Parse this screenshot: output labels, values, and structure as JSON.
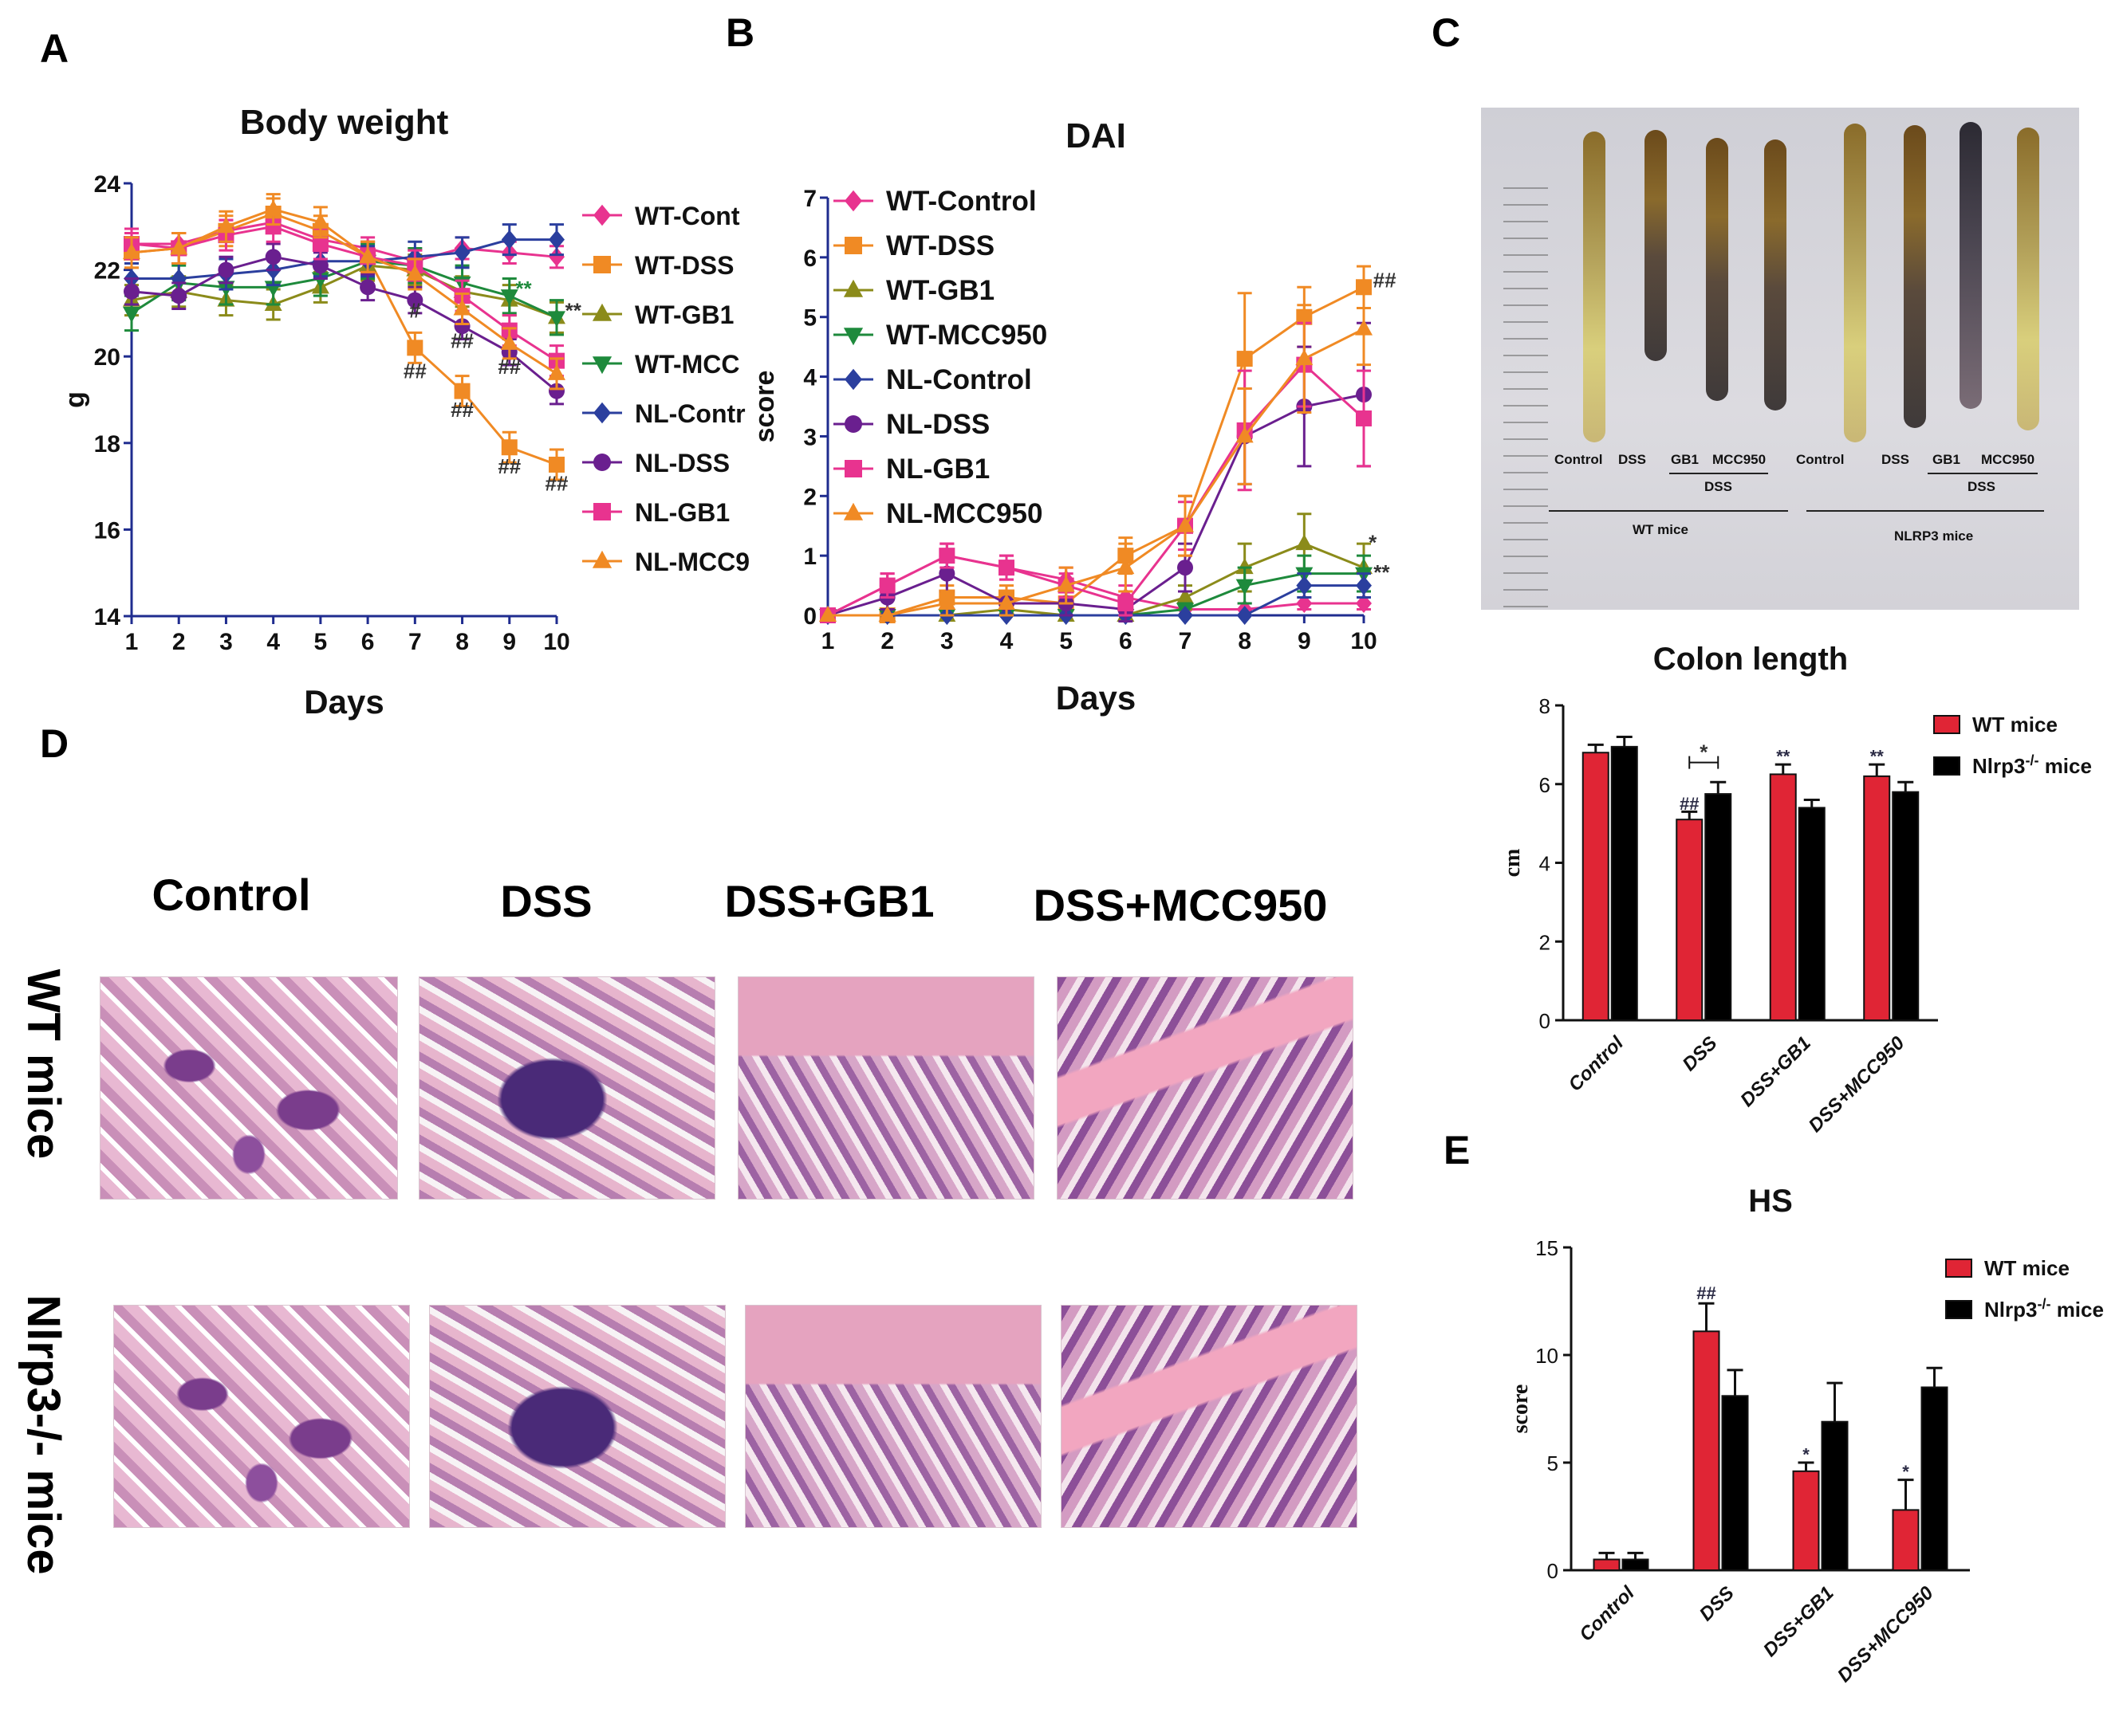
{
  "panels": {
    "A": "A",
    "B": "B",
    "C": "C",
    "D": "D",
    "E": "E"
  },
  "colors": {
    "WT-Control": "#e8338f",
    "WT-DSS": "#f08a24",
    "WT-GB1": "#8b8b1a",
    "WT-MCC950": "#1e8a3c",
    "NL-Control": "#2b3f9e",
    "NL-DSS": "#6a1f8f",
    "NL-GB1": "#e8338f",
    "NL-MCC950": "#f08a24",
    "wt_bar": "#e02535",
    "ko_bar": "#000000"
  },
  "chart_data": [
    {
      "id": "body-weight",
      "type": "line",
      "title": "Body weight",
      "xlabel": "Days",
      "ylabel": "g",
      "x": [
        1,
        2,
        3,
        4,
        5,
        6,
        7,
        8,
        9,
        10
      ],
      "ylim": [
        14,
        24
      ],
      "yticks": [
        14,
        16,
        18,
        20,
        22,
        24
      ],
      "series": [
        {
          "name": "WT-Cont",
          "marker": "diamond",
          "color": "#e8338f",
          "values": [
            22.6,
            22.6,
            22.9,
            23.1,
            22.7,
            22.5,
            22.2,
            22.5,
            22.4,
            22.3
          ],
          "err": 0.25
        },
        {
          "name": "WT-DSS",
          "marker": "square",
          "color": "#f08a24",
          "values": [
            22.4,
            22.5,
            22.9,
            23.3,
            22.9,
            22.3,
            20.2,
            19.2,
            17.9,
            17.5
          ],
          "err": 0.35
        },
        {
          "name": "WT-GB1",
          "marker": "triangle-up",
          "color": "#8b8b1a",
          "values": [
            21.3,
            21.5,
            21.3,
            21.2,
            21.6,
            22.1,
            22.0,
            21.5,
            21.3,
            20.9
          ],
          "err": 0.35
        },
        {
          "name": "WT-MCC",
          "marker": "triangle-down",
          "color": "#1e8a3c",
          "values": [
            21.0,
            21.7,
            21.6,
            21.6,
            21.8,
            22.2,
            22.1,
            21.7,
            21.4,
            20.9
          ],
          "err": 0.4
        },
        {
          "name": "NL-Contr",
          "marker": "diamond",
          "color": "#2b3f9e",
          "values": [
            21.8,
            21.8,
            21.9,
            22.0,
            22.2,
            22.2,
            22.3,
            22.4,
            22.7,
            22.7
          ],
          "err": 0.35
        },
        {
          "name": "NL-DSS",
          "marker": "circle",
          "color": "#6a1f8f",
          "values": [
            21.5,
            21.4,
            22.0,
            22.3,
            22.1,
            21.6,
            21.3,
            20.7,
            20.1,
            19.2
          ],
          "err": 0.3
        },
        {
          "name": "NL-GB1",
          "marker": "square",
          "color": "#e8338f",
          "values": [
            22.6,
            22.5,
            22.8,
            23.0,
            22.6,
            22.3,
            22.1,
            21.4,
            20.6,
            19.9
          ],
          "err": 0.35
        },
        {
          "name": "NL-MCC9",
          "marker": "triangle-up",
          "color": "#f08a24",
          "values": [
            22.4,
            22.5,
            23.0,
            23.4,
            23.1,
            22.3,
            21.9,
            21.1,
            20.3,
            19.6
          ],
          "err": 0.35
        }
      ],
      "annotations": [
        {
          "text": "#",
          "x": 7,
          "y": 20.9,
          "color": "#333"
        },
        {
          "text": "##",
          "x": 7,
          "y": 19.5,
          "color": "#333"
        },
        {
          "text": "##",
          "x": 8,
          "y": 20.2,
          "color": "#333"
        },
        {
          "text": "##",
          "x": 8,
          "y": 18.6,
          "color": "#333"
        },
        {
          "text": "##",
          "x": 9,
          "y": 19.6,
          "color": "#333"
        },
        {
          "text": "##",
          "x": 9,
          "y": 17.3,
          "color": "#333"
        },
        {
          "text": "##",
          "x": 10,
          "y": 16.9,
          "color": "#333"
        },
        {
          "text": "**",
          "x": 9.3,
          "y": 21.4,
          "color": "#1e8a3c"
        },
        {
          "text": "**",
          "x": 10.35,
          "y": 20.9,
          "color": "#333"
        }
      ]
    },
    {
      "id": "dai",
      "type": "line",
      "title": "DAI",
      "xlabel": "Days",
      "ylabel": "score",
      "x": [
        1,
        2,
        3,
        4,
        5,
        6,
        7,
        8,
        9,
        10
      ],
      "ylim": [
        0,
        7
      ],
      "yticks": [
        0,
        1,
        2,
        3,
        4,
        5,
        6,
        7
      ],
      "series": [
        {
          "name": "WT-Control",
          "marker": "diamond",
          "color": "#e8338f",
          "values": [
            0,
            0.5,
            1.0,
            0.8,
            0.6,
            0.3,
            0.1,
            0.1,
            0.2,
            0.2
          ],
          "err": [
            0,
            0.2,
            0.2,
            0.2,
            0.2,
            0.2,
            0.1,
            0.1,
            0.1,
            0.1
          ]
        },
        {
          "name": "WT-DSS",
          "marker": "square",
          "color": "#f08a24",
          "values": [
            0,
            0,
            0.3,
            0.3,
            0.2,
            1.0,
            1.5,
            4.3,
            5.0,
            5.5
          ],
          "err": [
            0,
            0,
            0.2,
            0.2,
            0.2,
            0.3,
            0.5,
            1.1,
            0.5,
            0.35
          ]
        },
        {
          "name": "WT-GB1",
          "marker": "triangle-up",
          "color": "#8b8b1a",
          "values": [
            0,
            0,
            0,
            0.1,
            0,
            0,
            0.3,
            0.8,
            1.2,
            0.8
          ],
          "err": [
            0,
            0,
            0,
            0.1,
            0,
            0,
            0.2,
            0.4,
            0.5,
            0.4
          ]
        },
        {
          "name": "WT-MCC950",
          "marker": "triangle-down",
          "color": "#1e8a3c",
          "values": [
            0,
            0,
            0,
            0,
            0,
            0,
            0.1,
            0.5,
            0.7,
            0.7
          ],
          "err": [
            0,
            0,
            0,
            0,
            0,
            0,
            0.1,
            0.3,
            0.3,
            0.3
          ]
        },
        {
          "name": "NL-Control",
          "marker": "diamond",
          "color": "#2b3f9e",
          "values": [
            0,
            0,
            0,
            0,
            0,
            0,
            0,
            0,
            0.5,
            0.5
          ],
          "err": [
            0,
            0,
            0,
            0,
            0,
            0,
            0,
            0,
            0.2,
            0.2
          ]
        },
        {
          "name": "NL-DSS",
          "marker": "circle",
          "color": "#6a1f8f",
          "values": [
            0,
            0.3,
            0.7,
            0.2,
            0.2,
            0.1,
            0.8,
            3.0,
            3.5,
            3.7
          ],
          "err": [
            0,
            0.2,
            0.3,
            0.2,
            0.2,
            0.2,
            0.4,
            0.8,
            1.0,
            1.2
          ]
        },
        {
          "name": "NL-GB1",
          "marker": "square",
          "color": "#e8338f",
          "values": [
            0,
            0.5,
            1.0,
            0.8,
            0.5,
            0.2,
            1.5,
            3.1,
            4.2,
            3.3
          ],
          "err": [
            0,
            0.2,
            0.2,
            0.2,
            0.2,
            0.2,
            0.4,
            1.0,
            0.7,
            0.8
          ]
        },
        {
          "name": "NL-MCC950",
          "marker": "triangle-up",
          "color": "#f08a24",
          "values": [
            0,
            0,
            0.2,
            0.2,
            0.5,
            0.8,
            1.5,
            3.0,
            4.3,
            4.8
          ],
          "err": [
            0,
            0,
            0.2,
            0.2,
            0.3,
            0.4,
            0.5,
            0.8,
            0.9,
            0.6
          ]
        }
      ],
      "annotations": [
        {
          "text": "##",
          "x": 10.35,
          "y": 5.5,
          "color": "#333"
        },
        {
          "text": "*",
          "x": 10.15,
          "y": 1.1,
          "color": "#333"
        },
        {
          "text": "**",
          "x": 10.3,
          "y": 0.6,
          "color": "#333"
        }
      ]
    },
    {
      "id": "colon-length",
      "type": "bar",
      "title": "Colon length",
      "ylabel": "cm",
      "categories": [
        "Control",
        "DSS",
        "DSS+GB1",
        "DSS+MCC950"
      ],
      "ylim": [
        0,
        8
      ],
      "yticks": [
        0,
        2,
        4,
        6,
        8
      ],
      "legend": [
        "WT mice",
        "Nlrp3",
        "-/-",
        " mice"
      ],
      "series": [
        {
          "name": "WT mice",
          "color": "#e02535",
          "values": [
            6.8,
            5.1,
            6.25,
            6.2
          ],
          "err": [
            0.2,
            0.2,
            0.25,
            0.3
          ]
        },
        {
          "name": "Nlrp3-/- mice",
          "color": "#000000",
          "values": [
            6.95,
            5.75,
            5.4,
            5.8
          ],
          "err": [
            0.25,
            0.3,
            0.2,
            0.25
          ]
        }
      ],
      "annotations": [
        {
          "text": "##",
          "category": 1,
          "series": 0,
          "y": 5.35
        },
        {
          "text": "**",
          "category": 2,
          "series": 0,
          "y": 6.55
        },
        {
          "text": "**",
          "category": 3,
          "series": 0,
          "y": 6.55
        },
        {
          "text": "*",
          "bracket": [
            1,
            0,
            1,
            1
          ],
          "y": 6.55
        }
      ]
    },
    {
      "id": "hs",
      "type": "bar",
      "title": "HS",
      "ylabel": "score",
      "categories": [
        "Control",
        "DSS",
        "DSS+GB1",
        "DSS+MCC950"
      ],
      "ylim": [
        0,
        15
      ],
      "yticks": [
        0,
        5,
        10,
        15
      ],
      "legend": [
        "WT mice",
        "Nlrp3",
        "-/-",
        " mice"
      ],
      "series": [
        {
          "name": "WT mice",
          "color": "#e02535",
          "values": [
            0.5,
            11.1,
            4.6,
            2.8
          ],
          "err": [
            0.3,
            1.3,
            0.4,
            1.4
          ]
        },
        {
          "name": "Nlrp3-/- mice",
          "color": "#000000",
          "values": [
            0.5,
            8.1,
            6.9,
            8.5
          ],
          "err": [
            0.3,
            1.2,
            1.8,
            0.9
          ]
        }
      ],
      "annotations": [
        {
          "text": "##",
          "category": 1,
          "series": 0,
          "y": 12.6
        },
        {
          "text": "*",
          "category": 2,
          "series": 0,
          "y": 5.1
        },
        {
          "text": "*",
          "category": 3,
          "series": 0,
          "y": 4.3
        }
      ]
    }
  ],
  "histology": {
    "columns": [
      "Control",
      "DSS",
      "DSS+GB1",
      "DSS+MCC950"
    ],
    "rows": [
      "WT mice",
      "Nlrp3-/- mice"
    ]
  },
  "photo": {
    "sample_labels_wt": [
      "Control",
      "DSS",
      "GB1",
      "MCC950"
    ],
    "sample_labels_nl": [
      "Control",
      "DSS",
      "GB1",
      "MCC950"
    ],
    "group_dss": "DSS",
    "group_wt": "WT mice",
    "group_nl": "NLRP3 mice"
  }
}
